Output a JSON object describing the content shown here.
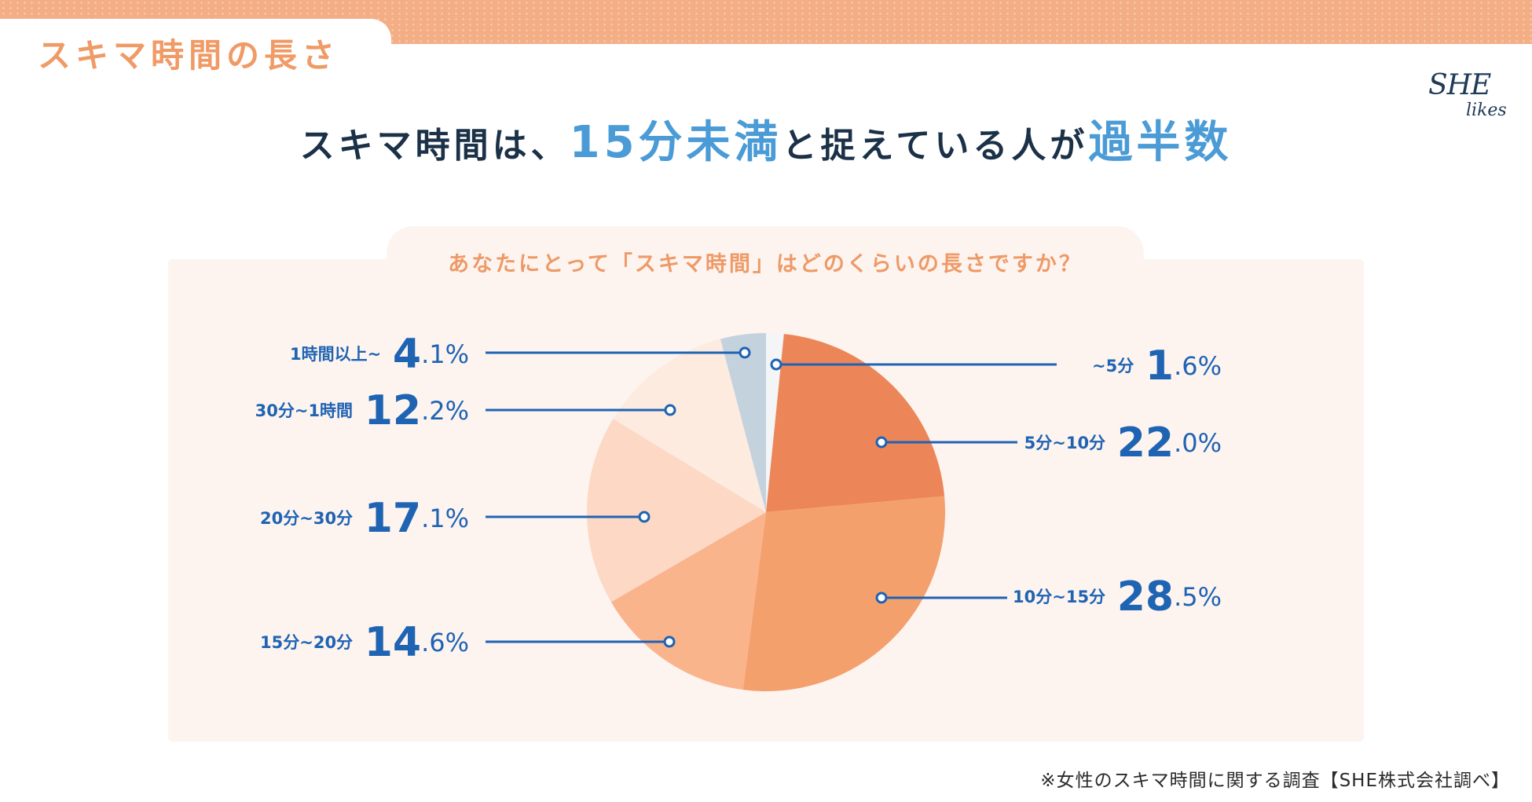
{
  "section_title": "スキマ時間の長さ",
  "logo": {
    "line1": "SHE",
    "line2": "likes"
  },
  "headline": {
    "part1": "スキマ時間は、",
    "highlight1": "15分未満",
    "part2": "と捉えている人が",
    "highlight2": "過半数"
  },
  "question": "あなたにとって「スキマ時間」はどのくらいの長さですか？",
  "footnote": "※女性のスキマ時間に関する調査【SHE株式会社調べ】",
  "colors": {
    "accent_orange": "#f09a66",
    "label_blue": "#1f63b3",
    "highlight_blue": "#4a9bd6",
    "navy": "#1b3148",
    "panel_bg": "#fdf4f0"
  },
  "chart_data": {
    "type": "pie",
    "unit": "%",
    "slices": [
      {
        "label": "~5分",
        "value": 1.6,
        "int": "1",
        "dec": ".6%",
        "color": "#f3f5f6"
      },
      {
        "label": "5分~10分",
        "value": 22.0,
        "int": "22",
        "dec": ".0%",
        "color": "#ec8658"
      },
      {
        "label": "10分~15分",
        "value": 28.5,
        "int": "28",
        "dec": ".5%",
        "color": "#f4a06d"
      },
      {
        "label": "15分~20分",
        "value": 14.6,
        "int": "14",
        "dec": ".6%",
        "color": "#fab48c"
      },
      {
        "label": "20分~30分",
        "value": 17.1,
        "int": "17",
        "dec": ".1%",
        "color": "#fcd8c5"
      },
      {
        "label": "30分~1時間",
        "value": 12.2,
        "int": "12",
        "dec": ".2%",
        "color": "#fdebe0"
      },
      {
        "label": "1時間以上~",
        "value": 4.1,
        "int": "4",
        "dec": ".1%",
        "color": "#c4d2dd"
      }
    ]
  }
}
